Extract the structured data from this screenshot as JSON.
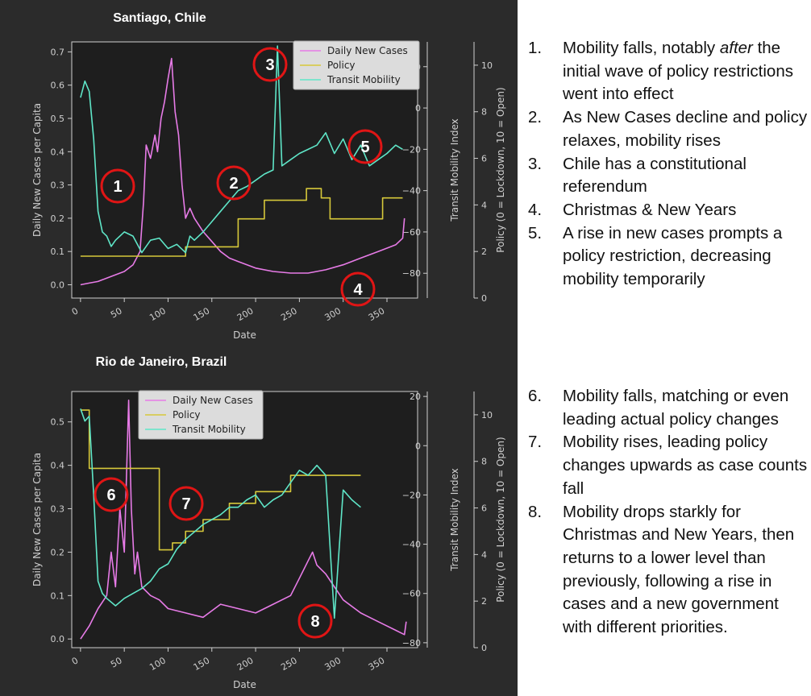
{
  "chart_data": [
    {
      "type": "line",
      "title": "Santiago, Chile",
      "xlabel": "Date",
      "ylabel": "Daily New Cases per Capita",
      "ylabel_mid": "Transit Mobility Index",
      "ylabel_right": "Policy (0 = Lockdown, 10 = Open)",
      "xlim": [
        -10,
        385
      ],
      "ylim": [
        -0.04,
        0.73
      ],
      "ylim_mid": [
        -92,
        32
      ],
      "ylim_right": [
        0,
        11
      ],
      "xticks": [
        0,
        50,
        100,
        150,
        200,
        250,
        300,
        350
      ],
      "yticks": [
        0.0,
        0.1,
        0.2,
        0.3,
        0.4,
        0.5,
        0.6,
        0.7
      ],
      "yticks_mid": [
        -80,
        -60,
        -40,
        -20,
        0,
        20
      ],
      "yticks_right": [
        0,
        2,
        4,
        6,
        8,
        10
      ],
      "legend_position": "top-right",
      "series": [
        {
          "name": "Daily New Cases",
          "color": "#e77be7",
          "axis": "left",
          "x": [
            0,
            10,
            20,
            30,
            40,
            50,
            60,
            68,
            72,
            75,
            80,
            85,
            88,
            92,
            96,
            100,
            104,
            108,
            112,
            116,
            120,
            125,
            130,
            140,
            150,
            160,
            170,
            180,
            200,
            220,
            240,
            260,
            280,
            300,
            320,
            340,
            360,
            368,
            370
          ],
          "y": [
            0.0,
            0.005,
            0.01,
            0.02,
            0.03,
            0.04,
            0.06,
            0.1,
            0.25,
            0.42,
            0.38,
            0.45,
            0.4,
            0.5,
            0.55,
            0.62,
            0.68,
            0.52,
            0.45,
            0.3,
            0.2,
            0.23,
            0.2,
            0.16,
            0.13,
            0.1,
            0.08,
            0.07,
            0.05,
            0.04,
            0.035,
            0.035,
            0.045,
            0.06,
            0.08,
            0.1,
            0.12,
            0.14,
            0.2
          ]
        },
        {
          "name": "Policy",
          "color": "#d6c83a",
          "axis": "right",
          "x": [
            0,
            120,
            120,
            180,
            180,
            210,
            210,
            258,
            258,
            275,
            275,
            285,
            285,
            345,
            345,
            368
          ],
          "y": [
            1.8,
            1.8,
            2.2,
            2.2,
            3.4,
            3.4,
            4.2,
            4.2,
            4.7,
            4.7,
            4.3,
            4.3,
            3.4,
            3.4,
            4.3,
            4.3
          ]
        },
        {
          "name": "Transit Mobility",
          "color": "#5fe6c8",
          "axis": "mid",
          "x": [
            0,
            5,
            10,
            15,
            20,
            25,
            30,
            35,
            40,
            50,
            60,
            70,
            80,
            90,
            100,
            110,
            120,
            125,
            130,
            140,
            150,
            160,
            170,
            180,
            190,
            200,
            210,
            220,
            225,
            230,
            240,
            250,
            260,
            270,
            280,
            290,
            300,
            310,
            320,
            330,
            340,
            350,
            360,
            368
          ],
          "y": [
            5,
            13,
            8,
            -15,
            -50,
            -60,
            -62,
            -67,
            -64,
            -60,
            -62,
            -70,
            -64,
            -63,
            -68,
            -66,
            -70,
            -62,
            -64,
            -60,
            -55,
            -50,
            -45,
            -40,
            -38,
            -35,
            -32,
            -30,
            30,
            -28,
            -25,
            -22,
            -20,
            -18,
            -12,
            -22,
            -15,
            -25,
            -18,
            -28,
            -25,
            -22,
            -18,
            -20
          ]
        }
      ],
      "annotations": [
        "1",
        "2",
        "3",
        "4",
        "5"
      ]
    },
    {
      "type": "line",
      "title": "Rio de Janeiro, Brazil",
      "xlabel": "Date",
      "ylabel": "Daily New Cases per Capita",
      "ylabel_mid": "Transit Mobility Index",
      "ylabel_right": "Policy (0 = Lockdown, 10 = Open)",
      "xlim": [
        -10,
        385
      ],
      "ylim": [
        -0.02,
        0.57
      ],
      "ylim_mid": [
        -82,
        22
      ],
      "ylim_right": [
        0,
        11
      ],
      "xticks": [
        0,
        50,
        100,
        150,
        200,
        250,
        300,
        350
      ],
      "yticks": [
        0.0,
        0.1,
        0.2,
        0.3,
        0.4,
        0.5
      ],
      "yticks_mid": [
        -80,
        -60,
        -40,
        -20,
        0,
        20
      ],
      "yticks_right": [
        0,
        2,
        4,
        6,
        8,
        10
      ],
      "legend_position": "top-left",
      "series": [
        {
          "name": "Daily New Cases",
          "color": "#e77be7",
          "axis": "left",
          "x": [
            0,
            10,
            20,
            30,
            35,
            40,
            45,
            50,
            55,
            58,
            62,
            65,
            70,
            80,
            90,
            100,
            120,
            140,
            160,
            180,
            200,
            220,
            240,
            250,
            260,
            265,
            270,
            280,
            290,
            300,
            320,
            340,
            360,
            370,
            372
          ],
          "y": [
            0.0,
            0.03,
            0.07,
            0.1,
            0.2,
            0.12,
            0.3,
            0.2,
            0.55,
            0.3,
            0.15,
            0.2,
            0.12,
            0.1,
            0.09,
            0.07,
            0.06,
            0.05,
            0.08,
            0.07,
            0.06,
            0.08,
            0.1,
            0.14,
            0.18,
            0.2,
            0.17,
            0.15,
            0.12,
            0.09,
            0.06,
            0.04,
            0.02,
            0.01,
            0.04
          ]
        },
        {
          "name": "Policy",
          "color": "#d6c83a",
          "axis": "right",
          "x": [
            0,
            10,
            10,
            90,
            90,
            105,
            105,
            120,
            120,
            140,
            140,
            170,
            170,
            200,
            200,
            240,
            240,
            320
          ],
          "y": [
            10.2,
            10.2,
            7.7,
            7.7,
            4.2,
            4.2,
            4.5,
            4.5,
            5,
            5,
            5.5,
            5.5,
            6.2,
            6.2,
            6.7,
            6.7,
            7.4,
            7.4
          ]
        },
        {
          "name": "Transit Mobility",
          "color": "#5fe6c8",
          "axis": "mid",
          "x": [
            0,
            5,
            10,
            15,
            20,
            25,
            30,
            40,
            50,
            60,
            70,
            80,
            90,
            100,
            110,
            120,
            130,
            140,
            150,
            160,
            170,
            180,
            190,
            200,
            210,
            220,
            230,
            240,
            250,
            260,
            270,
            280,
            290,
            300,
            310,
            320
          ],
          "y": [
            15,
            10,
            12,
            -20,
            -55,
            -60,
            -62,
            -65,
            -62,
            -60,
            -58,
            -55,
            -50,
            -48,
            -42,
            -38,
            -35,
            -32,
            -30,
            -28,
            -25,
            -25,
            -22,
            -20,
            -25,
            -22,
            -20,
            -15,
            -10,
            -12,
            -8,
            -12,
            -70,
            -18,
            -22,
            -25
          ]
        }
      ],
      "annotations": [
        "6",
        "7",
        "8"
      ]
    }
  ],
  "notes_top": [
    {
      "num": "1.",
      "text": "Mobility falls, notably <i>after</i> the initial wave of policy restrictions went into effect"
    },
    {
      "num": "2.",
      "text": "As New Cases decline and policy relaxes, mobility rises"
    },
    {
      "num": "3.",
      "text": "Chile has a constitutional referendum"
    },
    {
      "num": "4.",
      "text": "Christmas & New Years"
    },
    {
      "num": "5.",
      "text": "A rise in new cases prompts a policy restriction, decreasing mobility temporarily"
    }
  ],
  "notes_bottom": [
    {
      "num": "6.",
      "text": "Mobility falls, matching or even leading actual policy changes"
    },
    {
      "num": "7.",
      "text": "Mobility rises, leading policy changes upwards as case counts fall"
    },
    {
      "num": "8.",
      "text": "Mobility drops starkly for Christmas and New Years, then returns to a lower level than previously, following a rise in cases and a new government with different priorities."
    }
  ]
}
